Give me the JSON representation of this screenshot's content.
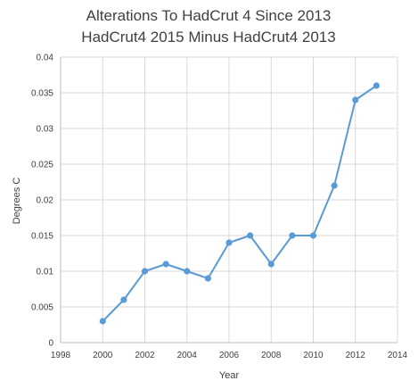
{
  "chart_data": {
    "type": "scatter",
    "title_lines": [
      "Alterations To HadCrut 4 Since 2013",
      "HadCrut4 2015 Minus HadCrut4 2013"
    ],
    "xlabel": "Year",
    "ylabel": "Degrees C",
    "xlim": [
      1998,
      2014
    ],
    "ylim": [
      0,
      0.04
    ],
    "x_ticks": [
      "1998",
      "2000",
      "2002",
      "2004",
      "2006",
      "2008",
      "2010",
      "2012",
      "2014"
    ],
    "y_ticks": [
      "0",
      "0.005",
      "0.01",
      "0.015",
      "0.02",
      "0.025",
      "0.03",
      "0.035",
      "0.04"
    ],
    "grid": true,
    "legend": "none",
    "line_color": "#5b9bd5",
    "series": [
      {
        "x": [
          2000,
          2001,
          2002,
          2003,
          2004,
          2005,
          2006,
          2007,
          2008,
          2009,
          2010,
          2011,
          2012,
          2013
        ],
        "y": [
          0.003,
          0.006,
          0.01,
          0.011,
          0.01,
          0.009,
          0.014,
          0.015,
          0.011,
          0.015,
          0.015,
          0.022,
          0.034,
          0.036
        ]
      }
    ]
  }
}
